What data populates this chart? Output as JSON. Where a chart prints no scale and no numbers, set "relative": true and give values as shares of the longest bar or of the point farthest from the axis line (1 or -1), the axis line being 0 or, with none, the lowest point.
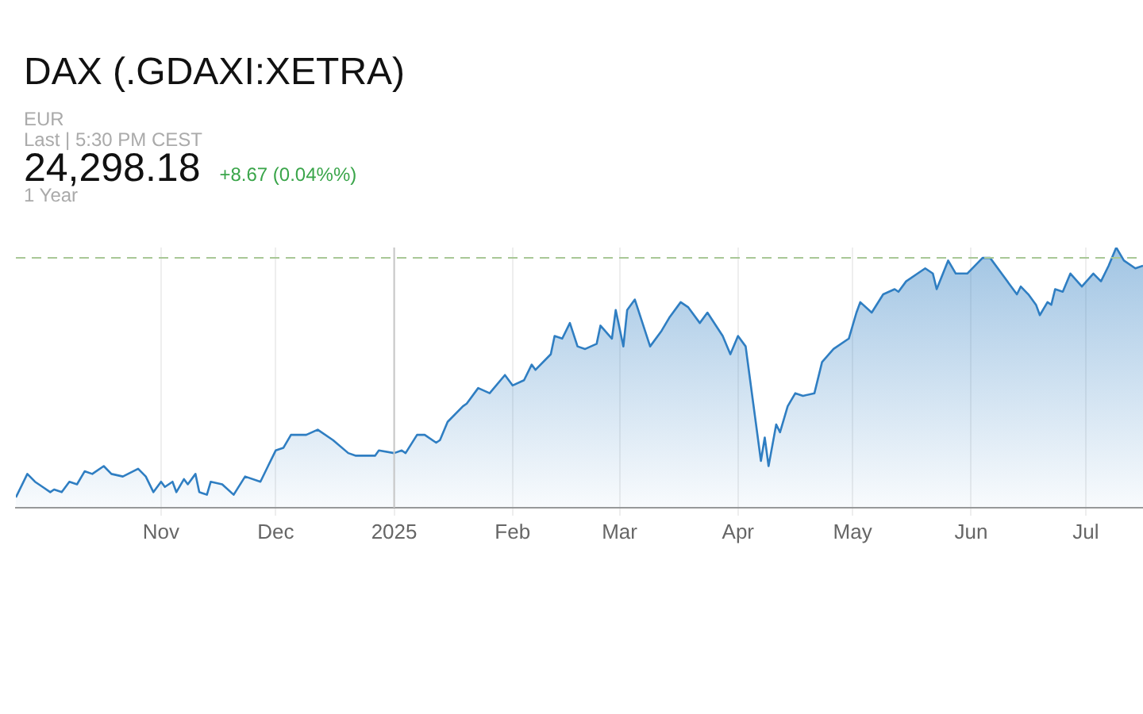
{
  "chart_data": {
    "type": "area",
    "title": "DAX (.GDAXI:XETRA)",
    "subtitle": "EUR",
    "annotations": [
      "Last | 5:30 PM CEST",
      "24,298.18",
      "+8.67 (0.04%%)",
      "1 Year"
    ],
    "relative": true,
    "grid": "x",
    "legend": false,
    "xlim": [
      "2024-09-24",
      "2025-07-16"
    ],
    "xticks": [
      {
        "value": "2024-11-01",
        "label": "Nov"
      },
      {
        "value": "2024-12-01",
        "label": "Dec"
      },
      {
        "value": "2025-01-01",
        "label": "2025"
      },
      {
        "value": "2025-02-01",
        "label": "Feb"
      },
      {
        "value": "2025-03-01",
        "label": "Mar"
      },
      {
        "value": "2025-04-01",
        "label": "Apr"
      },
      {
        "value": "2025-05-01",
        "label": "May"
      },
      {
        "value": "2025-06-01",
        "label": "Jun"
      },
      {
        "value": "2025-07-01",
        "label": "Jul"
      }
    ],
    "ref_lines": [
      {
        "axis": "y",
        "value": 0.96,
        "color": "#a8c896",
        "line_style": "dashed"
      },
      {
        "axis": "x",
        "value": "2025-01-01",
        "color": "#c8c8c8",
        "line_style": "solid"
      }
    ],
    "x": [
      "2024-09-24",
      "2024-09-27",
      "2024-09-29",
      "2024-10-01",
      "2024-10-03",
      "2024-10-04",
      "2024-10-06",
      "2024-10-08",
      "2024-10-10",
      "2024-10-12",
      "2024-10-14",
      "2024-10-17",
      "2024-10-19",
      "2024-10-22",
      "2024-10-26",
      "2024-10-28",
      "2024-10-30",
      "2024-11-01",
      "2024-11-02",
      "2024-11-04",
      "2024-11-05",
      "2024-11-07",
      "2024-11-08",
      "2024-11-10",
      "2024-11-11",
      "2024-11-13",
      "2024-11-14",
      "2024-11-17",
      "2024-11-20",
      "2024-11-23",
      "2024-11-27",
      "2024-11-29",
      "2024-12-01",
      "2024-12-03",
      "2024-12-05",
      "2024-12-09",
      "2024-12-12",
      "2024-12-16",
      "2024-12-20",
      "2024-12-22",
      "2024-12-27",
      "2024-12-28",
      "2025-01-01",
      "2025-01-03",
      "2025-01-04",
      "2025-01-07",
      "2025-01-09",
      "2025-01-12",
      "2025-01-13",
      "2025-01-15",
      "2025-01-19",
      "2025-01-20",
      "2025-01-23",
      "2025-01-26",
      "2025-01-30",
      "2025-02-01",
      "2025-02-04",
      "2025-02-06",
      "2025-02-07",
      "2025-02-11",
      "2025-02-12",
      "2025-02-14",
      "2025-02-16",
      "2025-02-18",
      "2025-02-20",
      "2025-02-23",
      "2025-02-24",
      "2025-02-27",
      "2025-02-28",
      "2025-03-02",
      "2025-03-03",
      "2025-03-05",
      "2025-03-07",
      "2025-03-09",
      "2025-03-12",
      "2025-03-14",
      "2025-03-17",
      "2025-03-19",
      "2025-03-22",
      "2025-03-24",
      "2025-03-28",
      "2025-03-30",
      "2025-04-01",
      "2025-04-03",
      "2025-04-04",
      "2025-04-07",
      "2025-04-08",
      "2025-04-09",
      "2025-04-11",
      "2025-04-12",
      "2025-04-14",
      "2025-04-16",
      "2025-04-18",
      "2025-04-21",
      "2025-04-23",
      "2025-04-26",
      "2025-04-30",
      "2025-05-02",
      "2025-05-03",
      "2025-05-06",
      "2025-05-09",
      "2025-05-12",
      "2025-05-13",
      "2025-05-15",
      "2025-05-18",
      "2025-05-20",
      "2025-05-22",
      "2025-05-23",
      "2025-05-26",
      "2025-05-28",
      "2025-05-31",
      "2025-06-04",
      "2025-06-06",
      "2025-06-09",
      "2025-06-13",
      "2025-06-14",
      "2025-06-16",
      "2025-06-18",
      "2025-06-19",
      "2025-06-21",
      "2025-06-22",
      "2025-06-23",
      "2025-06-25",
      "2025-06-27",
      "2025-06-30",
      "2025-07-03",
      "2025-07-05",
      "2025-07-07",
      "2025-07-09",
      "2025-07-11",
      "2025-07-14",
      "2025-07-16"
    ],
    "series": [
      {
        "color": "#2f7ec2",
        "values": [
          0.04,
          0.13,
          0.1,
          0.08,
          0.06,
          0.07,
          0.06,
          0.1,
          0.09,
          0.14,
          0.13,
          0.16,
          0.13,
          0.12,
          0.15,
          0.12,
          0.06,
          0.1,
          0.08,
          0.1,
          0.06,
          0.11,
          0.09,
          0.13,
          0.06,
          0.05,
          0.1,
          0.09,
          0.05,
          0.12,
          0.1,
          0.16,
          0.22,
          0.23,
          0.28,
          0.28,
          0.3,
          0.26,
          0.21,
          0.2,
          0.2,
          0.22,
          0.21,
          0.22,
          0.21,
          0.28,
          0.28,
          0.25,
          0.26,
          0.33,
          0.39,
          0.4,
          0.46,
          0.44,
          0.51,
          0.47,
          0.49,
          0.55,
          0.53,
          0.59,
          0.66,
          0.65,
          0.71,
          0.62,
          0.61,
          0.63,
          0.7,
          0.65,
          0.76,
          0.62,
          0.76,
          0.8,
          0.71,
          0.62,
          0.68,
          0.73,
          0.79,
          0.77,
          0.71,
          0.75,
          0.66,
          0.59,
          0.66,
          0.62,
          0.51,
          0.18,
          0.27,
          0.16,
          0.32,
          0.29,
          0.39,
          0.44,
          0.43,
          0.44,
          0.56,
          0.61,
          0.65,
          0.75,
          0.79,
          0.75,
          0.82,
          0.84,
          0.83,
          0.87,
          0.9,
          0.92,
          0.9,
          0.84,
          0.95,
          0.9,
          0.9,
          0.96,
          0.96,
          0.9,
          0.82,
          0.85,
          0.82,
          0.78,
          0.74,
          0.79,
          0.78,
          0.84,
          0.83,
          0.9,
          0.85,
          0.9,
          0.87,
          0.93,
          1.0,
          0.95,
          0.92,
          0.93
        ]
      }
    ]
  }
}
